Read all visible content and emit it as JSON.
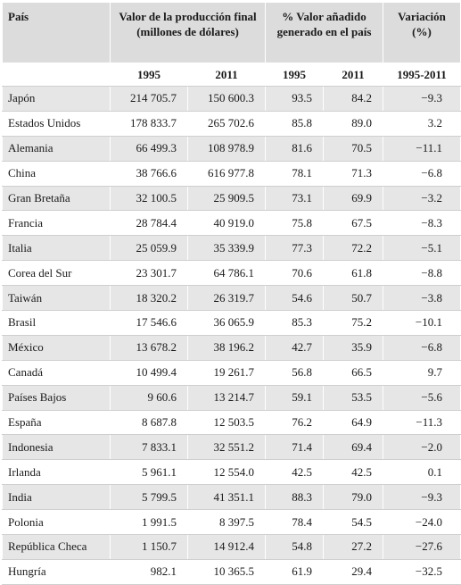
{
  "headers": {
    "country": "País",
    "production": "Valor de la producción final (millones de dólares)",
    "added_value": "% Valor añadido generado en el país",
    "variation": "Variación (%)",
    "year1": "1995",
    "year2": "2011",
    "range": "1995-2011"
  },
  "rows": [
    {
      "country": "Japón",
      "p1995": "214 705.7",
      "p2011": "150 600.3",
      "v1995": "93.5",
      "v2011": "84.2",
      "var": "−9.3"
    },
    {
      "country": "Estados Unidos",
      "p1995": "178 833.7",
      "p2011": "265 702.6",
      "v1995": "85.8",
      "v2011": "89.0",
      "var": "3.2"
    },
    {
      "country": "Alemania",
      "p1995": "66 499.3",
      "p2011": "108 978.9",
      "v1995": "81.6",
      "v2011": "70.5",
      "var": "−11.1"
    },
    {
      "country": "China",
      "p1995": "38 766.6",
      "p2011": "616 977.8",
      "v1995": "78.1",
      "v2011": "71.3",
      "var": "−6.8"
    },
    {
      "country": "Gran Bretaña",
      "p1995": "32 100.5",
      "p2011": "25 909.5",
      "v1995": "73.1",
      "v2011": "69.9",
      "var": "−3.2"
    },
    {
      "country": "Francia",
      "p1995": "28 784.4",
      "p2011": "40 919.0",
      "v1995": "75.8",
      "v2011": "67.5",
      "var": "−8.3"
    },
    {
      "country": "Italia",
      "p1995": "25 059.9",
      "p2011": "35 339.9",
      "v1995": "77.3",
      "v2011": "72.2",
      "var": "−5.1"
    },
    {
      "country": "Corea del Sur",
      "p1995": "23 301.7",
      "p2011": "64 786.1",
      "v1995": "70.6",
      "v2011": "61.8",
      "var": "−8.8"
    },
    {
      "country": "Taiwán",
      "p1995": "18 320.2",
      "p2011": "26 319.7",
      "v1995": "54.6",
      "v2011": "50.7",
      "var": "−3.8"
    },
    {
      "country": "Brasil",
      "p1995": "17 546.6",
      "p2011": "36 065.9",
      "v1995": "85.3",
      "v2011": "75.2",
      "var": "−10.1"
    },
    {
      "country": "México",
      "p1995": "13 678.2",
      "p2011": "38 196.2",
      "v1995": "42.7",
      "v2011": "35.9",
      "var": "−6.8"
    },
    {
      "country": "Canadá",
      "p1995": "10 499.4",
      "p2011": "19 261.7",
      "v1995": "56.8",
      "v2011": "66.5",
      "var": "9.7"
    },
    {
      "country": "Países Bajos",
      "p1995": "9 60.6",
      "p2011": "13 214.7",
      "v1995": "59.1",
      "v2011": "53.5",
      "var": "−5.6"
    },
    {
      "country": "España",
      "p1995": "8 687.8",
      "p2011": "12 503.5",
      "v1995": "76.2",
      "v2011": "64.9",
      "var": "−11.3"
    },
    {
      "country": "Indonesia",
      "p1995": "7 833.1",
      "p2011": "32 551.2",
      "v1995": "71.4",
      "v2011": "69.4",
      "var": "−2.0"
    },
    {
      "country": "Irlanda",
      "p1995": "5 961.1",
      "p2011": "12 554.0",
      "v1995": "42.5",
      "v2011": "42.5",
      "var": "0.1"
    },
    {
      "country": "India",
      "p1995": "5 799.5",
      "p2011": "41 351.1",
      "v1995": "88.3",
      "v2011": "79.0",
      "var": "−9.3"
    },
    {
      "country": "Polonia",
      "p1995": "1 991.5",
      "p2011": "8 397.5",
      "v1995": "78.4",
      "v2011": "54.5",
      "var": "−24.0"
    },
    {
      "country": "República Checa",
      "p1995": "1 150.7",
      "p2011": "14 912.4",
      "v1995": "54.8",
      "v2011": "27.2",
      "var": "−27.6"
    },
    {
      "country": "Hungría",
      "p1995": "982.1",
      "p2011": "10 365.5",
      "v1995": "61.9",
      "v2011": "29.4",
      "var": "−32.5"
    }
  ]
}
